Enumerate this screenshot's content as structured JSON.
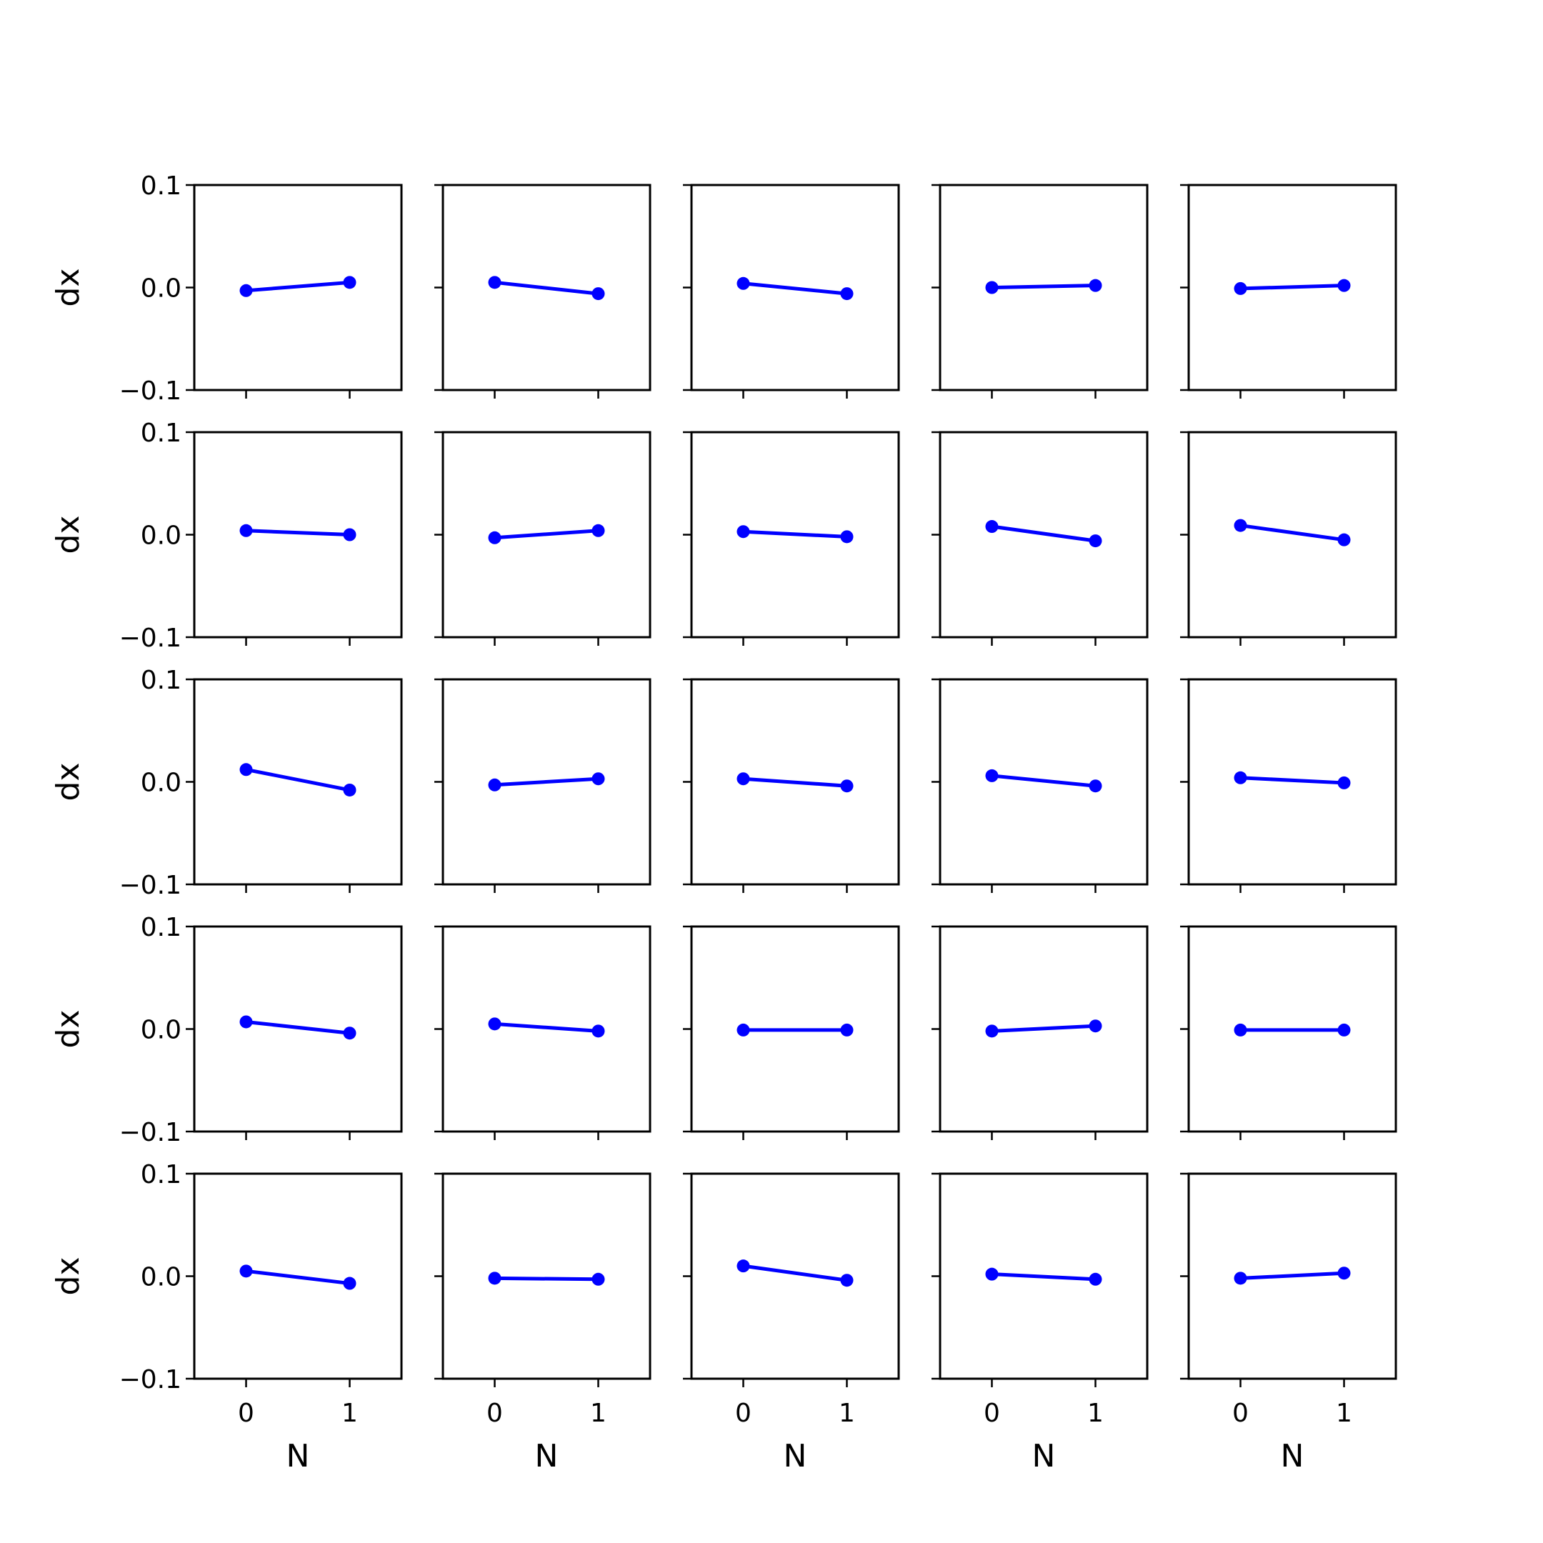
{
  "chart_data": {
    "type": "line",
    "layout": "grid",
    "rows": 5,
    "cols": 5,
    "xlabel": "N",
    "ylabel": "dx",
    "x": [
      0,
      1
    ],
    "xticks": [
      0,
      1
    ],
    "xtick_labels": [
      "0",
      "1"
    ],
    "xlim": [
      -0.5,
      1.5
    ],
    "ylim": [
      -0.1,
      0.1
    ],
    "yticks": [
      -0.1,
      0.0,
      0.1
    ],
    "ytick_labels": [
      "−0.1",
      "0.0",
      "0.1"
    ],
    "grid": false,
    "marker": "circle",
    "color": "#0000ff",
    "panels": [
      [
        -0.003,
        0.005
      ],
      [
        0.005,
        -0.006
      ],
      [
        0.004,
        -0.006
      ],
      [
        0.0,
        0.002
      ],
      [
        -0.001,
        0.002
      ],
      [
        0.004,
        0.0
      ],
      [
        -0.003,
        0.004
      ],
      [
        0.003,
        -0.002
      ],
      [
        0.008,
        -0.006
      ],
      [
        0.009,
        -0.005
      ],
      [
        0.012,
        -0.008
      ],
      [
        -0.003,
        0.003
      ],
      [
        0.003,
        -0.004
      ],
      [
        0.006,
        -0.004
      ],
      [
        0.004,
        -0.001
      ],
      [
        0.007,
        -0.004
      ],
      [
        0.005,
        -0.002
      ],
      [
        -0.001,
        -0.001
      ],
      [
        -0.002,
        0.003
      ],
      [
        -0.001,
        -0.001
      ],
      [
        0.005,
        -0.007
      ],
      [
        -0.002,
        -0.003
      ],
      [
        0.01,
        -0.004
      ],
      [
        0.002,
        -0.003
      ],
      [
        -0.002,
        0.003
      ]
    ]
  }
}
